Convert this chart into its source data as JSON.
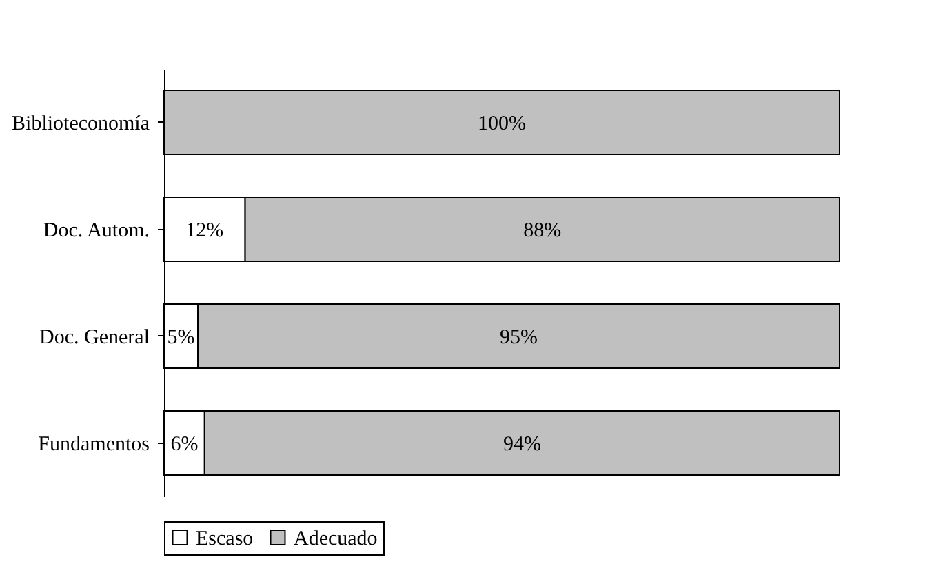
{
  "chart_data": {
    "type": "bar",
    "orientation": "horizontal",
    "stacked": true,
    "categories": [
      "Biblioteconomía",
      "Doc. Autom.",
      "Doc. General",
      "Fundamentos"
    ],
    "xlim": [
      0,
      100
    ],
    "legend": "bottom",
    "tick_labels": "y",
    "series": [
      {
        "name": "Escaso",
        "color": "#ffffff",
        "values": [
          null,
          12,
          5,
          6
        ],
        "value_labels": [
          null,
          "12%",
          "5%",
          "6%"
        ]
      },
      {
        "name": "Adecuado",
        "color": "#c0c0c0",
        "values": [
          100,
          88,
          95,
          94
        ],
        "value_labels": [
          "100%",
          "88%",
          "95%",
          "94%"
        ]
      }
    ]
  }
}
